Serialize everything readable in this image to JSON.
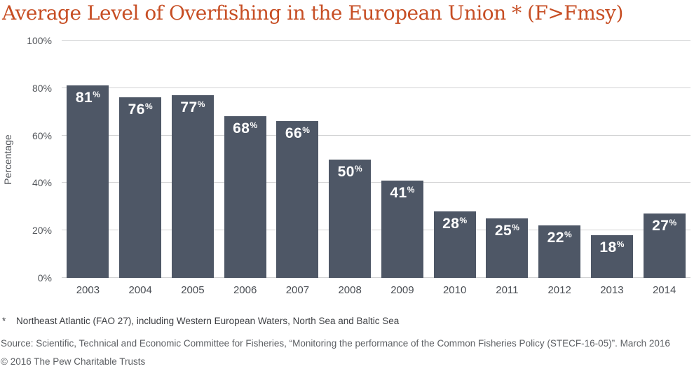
{
  "title": "Average Level of Overfishing in the European Union * (F>Fmsy)",
  "colors": {
    "title": "#c74e24",
    "bar": "#4e5766",
    "gridline": "#d2d3d4",
    "axis_text": "#54575c",
    "bar_label": "#ffffff"
  },
  "chart_data": {
    "type": "bar",
    "categories": [
      "2003",
      "2004",
      "2005",
      "2006",
      "2007",
      "2008",
      "2009",
      "2010",
      "2011",
      "2012",
      "2013",
      "2014"
    ],
    "values": [
      81,
      76,
      77,
      68,
      66,
      50,
      41,
      28,
      25,
      22,
      18,
      27
    ],
    "value_suffix": "%",
    "title": "Average Level of Overfishing in the European Union * (F>Fmsy)",
    "xlabel": "",
    "ylabel": "Percentage",
    "ylim": [
      0,
      100
    ],
    "yticks": [
      0,
      20,
      40,
      60,
      80,
      100
    ],
    "ytick_suffix": "%",
    "grid": true,
    "legend": false,
    "bar_labels_inside_top": true
  },
  "footer": {
    "footnote_marker": "*",
    "footnote": "Northeast Atlantic (FAO 27), including Western European Waters, North Sea and Baltic Sea",
    "source": "Source: Scientific, Technical and Economic Committee for Fisheries, “Monitoring the performance of the Common Fisheries Policy (STECF-16-05)”. March 2016",
    "copyright": "© 2016 The Pew Charitable Trusts"
  }
}
